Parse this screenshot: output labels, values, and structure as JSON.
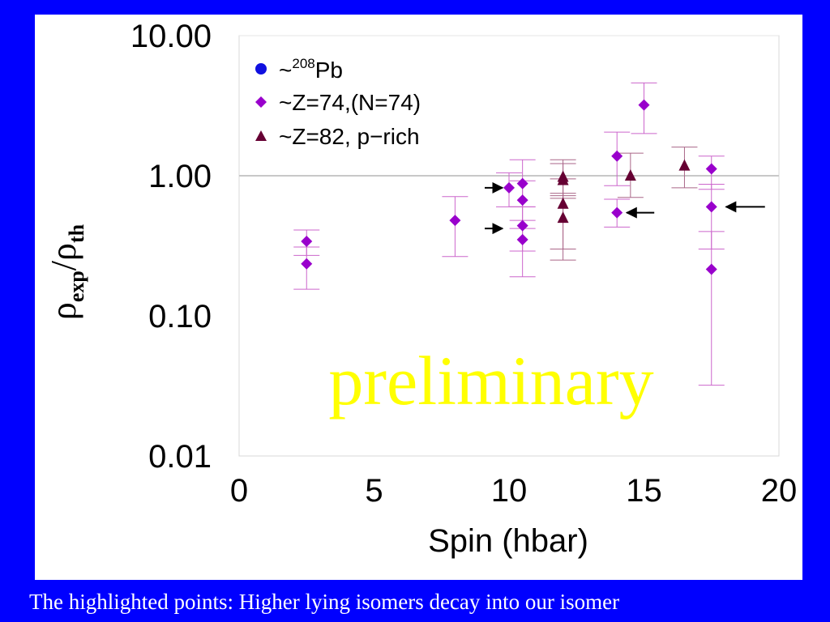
{
  "caption": "The highlighted points: Higher lying isomers decay into our isomer",
  "colors": {
    "background": "#0000ff",
    "panel": "#ffffff",
    "pb": "#1010e0",
    "z74": "#9900cc",
    "z74_error": "#cc66cc",
    "z82": "#660033",
    "z82_error": "#aa6688",
    "watermark": "#ffff00",
    "reference_line": "#c8c8c8",
    "arrow": "#000000"
  },
  "chart_data": {
    "type": "scatter",
    "xlabel": "Spin (hbar)",
    "ylabel": {
      "base": "ρ",
      "sub": "exp",
      "sep": "/",
      "base2": "ρ",
      "sub2": "th"
    },
    "xlim": [
      0,
      20
    ],
    "ylim": [
      0.01,
      10
    ],
    "yscale": "log",
    "x_ticks": [
      "0",
      "5",
      "10",
      "15",
      "20"
    ],
    "y_ticks": [
      "10.00",
      "1.00",
      "0.10",
      "0.01"
    ],
    "reference_line": 1.0,
    "watermark": "preliminary",
    "legend_position": "top-left",
    "series": [
      {
        "name": "~208Pb",
        "legend_parts": [
          "~",
          "208",
          "Pb"
        ],
        "marker": "circle",
        "points": []
      },
      {
        "name": "~Z=74,(N=74)",
        "marker": "diamond",
        "points": [
          {
            "x": 2.5,
            "y": 0.34,
            "ylo": 0.27,
            "yhi": 0.41
          },
          {
            "x": 2.5,
            "y": 0.235,
            "ylo": 0.155,
            "yhi": 0.31
          },
          {
            "x": 8.0,
            "y": 0.48,
            "ylo": 0.265,
            "yhi": 0.71
          },
          {
            "x": 10.0,
            "y": 0.82,
            "ylo": 0.6,
            "yhi": 1.05
          },
          {
            "x": 10.5,
            "y": 0.88,
            "ylo": 0.6,
            "yhi": 1.3
          },
          {
            "x": 10.5,
            "y": 0.67,
            "ylo": 0.42,
            "yhi": 0.92
          },
          {
            "x": 10.5,
            "y": 0.44,
            "ylo": 0.29,
            "yhi": 0.6
          },
          {
            "x": 10.5,
            "y": 0.35,
            "ylo": 0.19,
            "yhi": 0.48
          },
          {
            "x": 14.0,
            "y": 1.38,
            "ylo": 0.85,
            "yhi": 2.05
          },
          {
            "x": 14.0,
            "y": 0.545,
            "ylo": 0.43,
            "yhi": 0.68
          },
          {
            "x": 15.0,
            "y": 3.2,
            "ylo": 2.0,
            "yhi": 4.6
          },
          {
            "x": 17.5,
            "y": 1.12,
            "ylo": 0.8,
            "yhi": 1.38
          },
          {
            "x": 17.5,
            "y": 0.6,
            "ylo": 0.3,
            "yhi": 0.87
          },
          {
            "x": 17.5,
            "y": 0.215,
            "ylo": 0.032,
            "yhi": 0.4
          }
        ]
      },
      {
        "name": "~Z=82, p−rich",
        "marker": "triangle",
        "points": [
          {
            "x": 12.0,
            "y": 0.98,
            "ylo": 0.72,
            "yhi": 1.3
          },
          {
            "x": 12.0,
            "y": 0.93,
            "ylo": 0.69,
            "yhi": 1.22
          },
          {
            "x": 12.0,
            "y": 0.63,
            "ylo": 0.3,
            "yhi": 0.95
          },
          {
            "x": 12.0,
            "y": 0.5,
            "ylo": 0.25,
            "yhi": 0.75
          },
          {
            "x": 14.5,
            "y": 1.0,
            "ylo": 0.7,
            "yhi": 1.45
          },
          {
            "x": 16.5,
            "y": 1.18,
            "ylo": 0.82,
            "yhi": 1.6
          }
        ]
      }
    ],
    "highlight_arrows": [
      {
        "x": 10.0,
        "y": 0.82
      },
      {
        "x": 10.0,
        "y": 0.42
      },
      {
        "x": 14.0,
        "y": 0.545
      },
      {
        "x": 17.5,
        "y": 0.6
      }
    ]
  }
}
